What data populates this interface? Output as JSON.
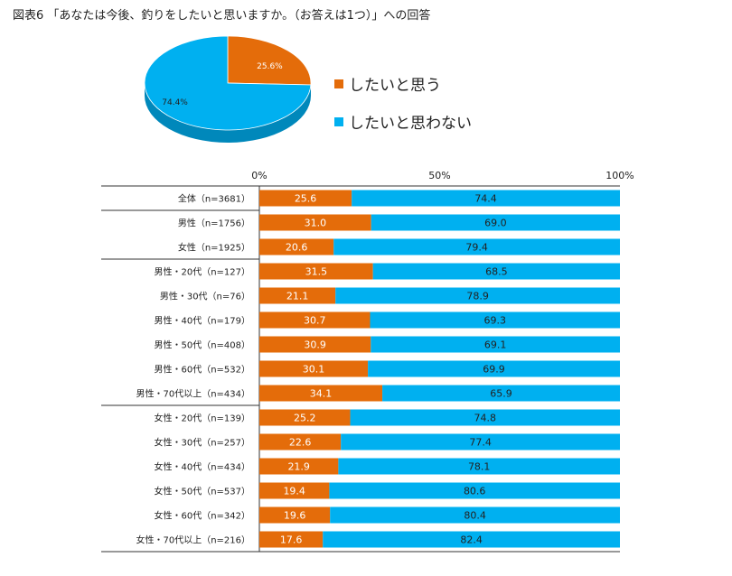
{
  "title": "図表6 「あなたは今後、釣りをしたいと思いますか。（お答えは1つ）」への回答",
  "colors": {
    "want": "#E46C0A",
    "not_want": "#00B0F0"
  },
  "chart_data": [
    {
      "type": "pie",
      "labels": [
        "したいと思う",
        "したいと思わない"
      ],
      "values": [
        25.6,
        74.4
      ],
      "data_labels": [
        "25.6%",
        "74.4%"
      ],
      "legend": [
        "したいと思う",
        "したいと思わない"
      ]
    },
    {
      "type": "bar",
      "orientation": "horizontal",
      "stacked": true,
      "xlim": [
        0,
        100
      ],
      "x_ticks": [
        "0%",
        "50%",
        "100%"
      ],
      "categories": [
        "全体（n=3681）",
        "男性（n=1756）",
        "女性（n=1925）",
        "男性・20代（n=127）",
        "男性・30代（n=76）",
        "男性・40代（n=179）",
        "男性・50代（n=408）",
        "男性・60代（n=532）",
        "男性・70代以上（n=434）",
        "女性・20代（n=139）",
        "女性・30代（n=257）",
        "女性・40代（n=434）",
        "女性・50代（n=537）",
        "女性・60代（n=342）",
        "女性・70代以上（n=216）"
      ],
      "group_breaks_after": [
        0,
        2,
        8
      ],
      "series": [
        {
          "name": "したいと思う",
          "values": [
            25.6,
            31.0,
            20.6,
            31.5,
            21.1,
            30.7,
            30.9,
            30.1,
            34.1,
            25.2,
            22.6,
            21.9,
            19.4,
            19.6,
            17.6
          ],
          "labels": [
            "25.6",
            "31.0",
            "20.6",
            "31.5",
            "21.1",
            "30.7",
            "30.9",
            "30.1",
            "34.1",
            "25.2",
            "22.6",
            "21.9",
            "19.4",
            "19.6",
            "17.6"
          ]
        },
        {
          "name": "したいと思わない",
          "values": [
            74.4,
            69.0,
            79.4,
            68.5,
            78.9,
            69.3,
            69.1,
            69.9,
            65.9,
            74.8,
            77.4,
            78.1,
            80.6,
            80.4,
            82.4
          ],
          "labels": [
            "74.4",
            "69.0",
            "79.4",
            "68.5",
            "78.9",
            "69.3",
            "69.1",
            "69.9",
            "65.9",
            "74.8",
            "77.4",
            "78.1",
            "80.6",
            "80.4",
            "82.4"
          ]
        }
      ]
    }
  ]
}
